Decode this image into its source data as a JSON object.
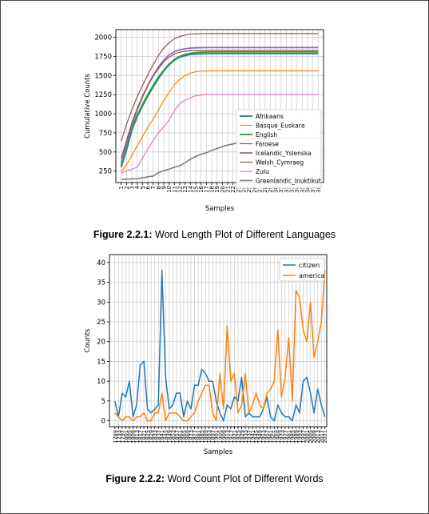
{
  "figures": [
    {
      "caption_label": "Figure 2.2.1:",
      "caption_text": " Word Length Plot of Different Languages"
    },
    {
      "caption_label": "Figure 2.2.2:",
      "caption_text": " Word Count Plot of Different Words"
    }
  ],
  "chart_data": [
    {
      "type": "line",
      "xlabel": "Samples",
      "ylabel": "Cumulative Counts",
      "xlim": [
        0,
        39
      ],
      "ylim": [
        100,
        2100
      ],
      "yticks": [
        250,
        500,
        750,
        1000,
        1250,
        1500,
        1750,
        2000
      ],
      "x": [
        1,
        2,
        3,
        4,
        5,
        6,
        7,
        8,
        9,
        10,
        11,
        12,
        13,
        14,
        15,
        16,
        17,
        18,
        19,
        20,
        21,
        22,
        23,
        24,
        25,
        26,
        27,
        28,
        29,
        30,
        31,
        32,
        33,
        34,
        35,
        36,
        37,
        38
      ],
      "grid": true,
      "legend_position": "lower-right",
      "series": [
        {
          "name": "Afrikaans",
          "color": "#1f77b4",
          "lw": 1.8,
          "values": [
            300,
            520,
            780,
            960,
            1100,
            1230,
            1350,
            1460,
            1560,
            1640,
            1700,
            1740,
            1760,
            1775,
            1780,
            1783,
            1785,
            1786,
            1786,
            1786,
            1786,
            1786,
            1786,
            1786,
            1786,
            1786,
            1786,
            1786,
            1786,
            1786,
            1786,
            1786,
            1786,
            1786,
            1786,
            1786,
            1786,
            1786
          ]
        },
        {
          "name": "Basque_Euskara",
          "color": "#ff7f0e",
          "lw": 1.2,
          "values": [
            240,
            330,
            450,
            580,
            700,
            820,
            930,
            1050,
            1170,
            1280,
            1380,
            1450,
            1500,
            1530,
            1550,
            1558,
            1560,
            1561,
            1561,
            1561,
            1561,
            1561,
            1561,
            1561,
            1561,
            1561,
            1561,
            1561,
            1561,
            1561,
            1561,
            1561,
            1561,
            1561,
            1561,
            1561,
            1561,
            1561
          ]
        },
        {
          "name": "English",
          "color": "#2ca02c",
          "lw": 1.8,
          "values": [
            320,
            560,
            800,
            980,
            1120,
            1250,
            1370,
            1480,
            1570,
            1650,
            1710,
            1750,
            1775,
            1790,
            1800,
            1805,
            1807,
            1808,
            1808,
            1808,
            1808,
            1808,
            1808,
            1808,
            1808,
            1808,
            1808,
            1808,
            1808,
            1808,
            1808,
            1808,
            1808,
            1808,
            1808,
            1808,
            1808,
            1808
          ]
        },
        {
          "name": "Faroese",
          "color": "#8c564b",
          "lw": 1.2,
          "values": [
            640,
            860,
            1050,
            1220,
            1370,
            1510,
            1640,
            1760,
            1860,
            1930,
            1980,
            2010,
            2030,
            2040,
            2045,
            2047,
            2048,
            2048,
            2048,
            2048,
            2048,
            2048,
            2048,
            2048,
            2048,
            2048,
            2048,
            2048,
            2048,
            2048,
            2048,
            2048,
            2048,
            2048,
            2048,
            2048,
            2048,
            2048
          ]
        },
        {
          "name": "Icelandic_Yslenska",
          "color": "#9467bd",
          "lw": 1.8,
          "values": [
            360,
            600,
            850,
            1050,
            1220,
            1370,
            1500,
            1610,
            1700,
            1770,
            1810,
            1835,
            1850,
            1858,
            1862,
            1864,
            1865,
            1865,
            1865,
            1865,
            1865,
            1865,
            1865,
            1865,
            1865,
            1865,
            1865,
            1865,
            1865,
            1865,
            1865,
            1865,
            1865,
            1865,
            1865,
            1865,
            1865,
            1865
          ]
        },
        {
          "name": "Welsh_Cymraeg",
          "color": "#8c564b",
          "lw": 1.2,
          "values": [
            420,
            650,
            880,
            1070,
            1230,
            1370,
            1490,
            1590,
            1680,
            1740,
            1780,
            1805,
            1818,
            1824,
            1826,
            1827,
            1827,
            1827,
            1827,
            1827,
            1827,
            1827,
            1827,
            1827,
            1827,
            1827,
            1827,
            1827,
            1827,
            1827,
            1827,
            1827,
            1827,
            1827,
            1827,
            1827,
            1827,
            1827
          ]
        },
        {
          "name": "Zulu",
          "color": "#e377c2",
          "lw": 1.2,
          "values": [
            220,
            250,
            275,
            300,
            420,
            540,
            650,
            750,
            830,
            920,
            1040,
            1130,
            1180,
            1210,
            1235,
            1245,
            1250,
            1251,
            1251,
            1251,
            1251,
            1251,
            1251,
            1251,
            1251,
            1251,
            1251,
            1251,
            1251,
            1251,
            1251,
            1251,
            1251,
            1251,
            1251,
            1251,
            1251,
            1251
          ]
        },
        {
          "name": "Greenlandic_Inuktikut",
          "color": "#7f7f7f",
          "lw": 1.6,
          "values": [
            140,
            145,
            148,
            150,
            160,
            175,
            185,
            230,
            255,
            275,
            300,
            320,
            360,
            405,
            440,
            470,
            490,
            520,
            545,
            570,
            590,
            605,
            625,
            640,
            660,
            670,
            675,
            678,
            680,
            682,
            683,
            684,
            684,
            685,
            685,
            685,
            685,
            685
          ]
        }
      ]
    },
    {
      "type": "line",
      "xlabel": "Samples",
      "ylabel": "Counts",
      "ylim": [
        -1.5,
        42
      ],
      "yticks": [
        0,
        5,
        10,
        15,
        20,
        25,
        30,
        35,
        40
      ],
      "grid": true,
      "legend_position": "top-right",
      "categories": [
        "1789",
        "1793",
        "1797",
        "1801",
        "1805",
        "1809",
        "1813",
        "1817",
        "1821",
        "1825",
        "1829",
        "1833",
        "1837",
        "1841",
        "1845",
        "1849",
        "1853",
        "1857",
        "1861",
        "1865",
        "1869",
        "1873",
        "1877",
        "1881",
        "1885",
        "1889",
        "1893",
        "1897",
        "1901",
        "1905",
        "1909",
        "1913",
        "1917",
        "1921",
        "1925",
        "1929",
        "1933",
        "1937",
        "1941",
        "1945",
        "1949",
        "1953",
        "1957",
        "1961",
        "1965",
        "1969",
        "1973",
        "1977",
        "1981",
        "1985",
        "1989",
        "1993",
        "1997",
        "2001",
        "2005",
        "2009",
        "2013",
        "2017",
        "2021"
      ],
      "xtick_labels": [
        "1789",
        "1793",
        "1797",
        "1801",
        "1805",
        "1809",
        "1813",
        "1817",
        "1821",
        "1825",
        "1829",
        "1833",
        "1837",
        "1841",
        "1845",
        "1849",
        "1853",
        "1857",
        "1861",
        "1865",
        "1869",
        "1873",
        "1877",
        "1881",
        "1885",
        "1889",
        "1893",
        "1897",
        "1901",
        "1905",
        "1909",
        "1913",
        "1917",
        "1921",
        "1925",
        "1929",
        "1933",
        "1937",
        "1941",
        "1945",
        "1949",
        "1953",
        "1957",
        "1961",
        "1965",
        "1969",
        "1973",
        "1977",
        "1981",
        "1985",
        "1989",
        "1993",
        "1997",
        "2001",
        "2005",
        "2009",
        "2013",
        "2017",
        "2021"
      ],
      "series": [
        {
          "name": "citizen",
          "color": "#1f77b4",
          "values": [
            5,
            1,
            7,
            6,
            10,
            1,
            4,
            14,
            15,
            3,
            2,
            3,
            4,
            38,
            11,
            3,
            4,
            7,
            7,
            1,
            5,
            3,
            9,
            9,
            13,
            12,
            10,
            10,
            5,
            2,
            0,
            4,
            3,
            6,
            5,
            11,
            1,
            2,
            1,
            1,
            1,
            3,
            6,
            1,
            0,
            4,
            2,
            1,
            1,
            0,
            4,
            2,
            10,
            11,
            7,
            2,
            8,
            4,
            1
          ]
        },
        {
          "name": "america",
          "color": "#ff7f0e",
          "values": [
            2,
            1,
            0,
            1,
            1,
            0,
            1,
            1,
            2,
            0,
            0,
            2,
            2,
            7,
            0,
            2,
            2,
            2,
            1,
            0,
            0,
            1,
            2,
            5,
            7,
            9,
            9,
            2,
            0,
            12,
            3,
            24,
            10,
            12,
            2,
            4,
            12,
            2,
            4,
            7,
            4,
            3,
            7,
            8,
            10,
            23,
            6,
            11,
            21,
            5,
            33,
            31,
            23,
            20,
            30,
            16,
            20,
            25,
            38
          ]
        }
      ]
    }
  ]
}
